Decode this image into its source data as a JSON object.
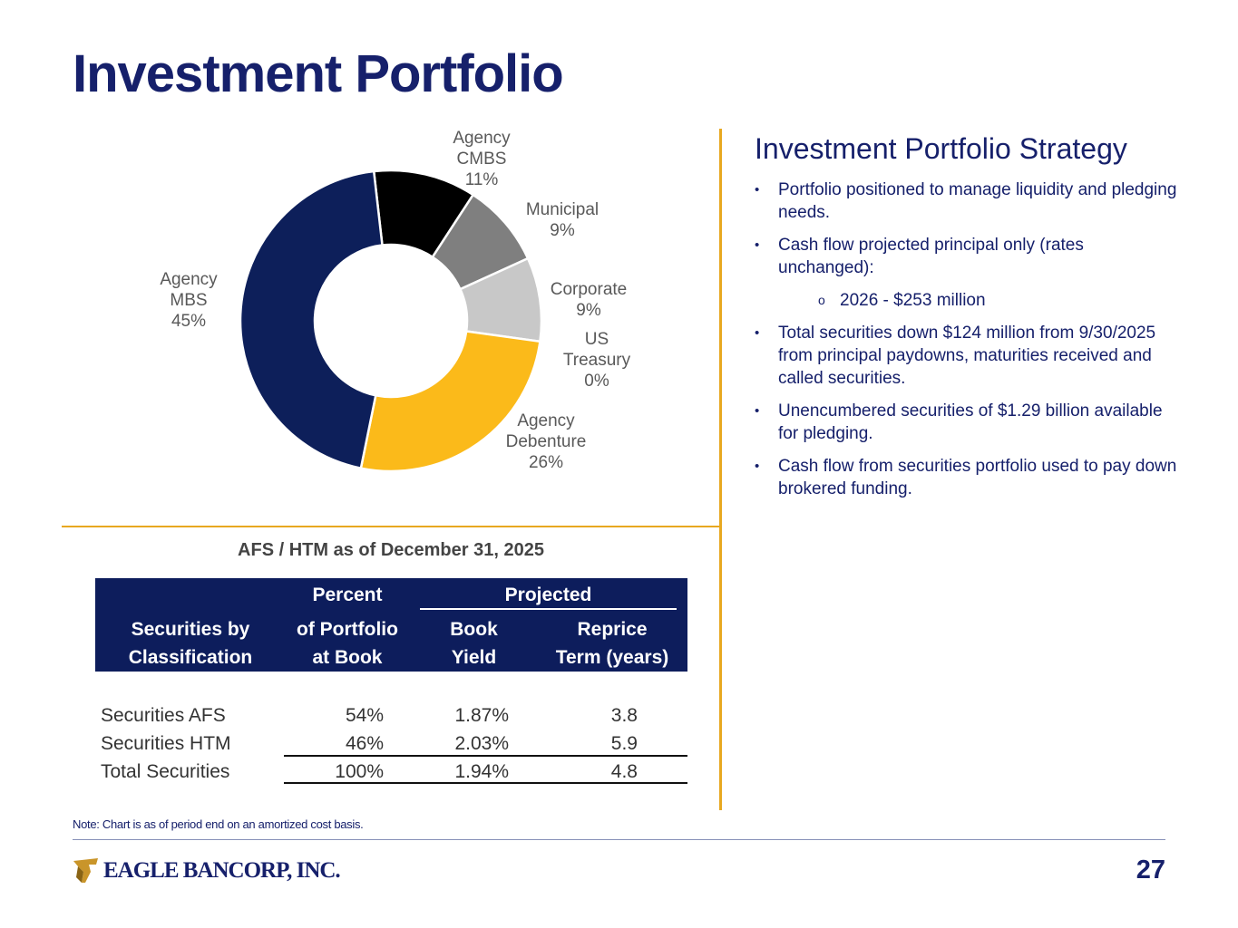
{
  "title": "Investment Portfolio",
  "chart_data": {
    "type": "pie",
    "subtype": "donut",
    "slices": [
      {
        "label_lines": [
          "Agency",
          "CMBS",
          "11%"
        ],
        "name": "Agency CMBS",
        "value": 11,
        "color": "#000000"
      },
      {
        "label_lines": [
          "Municipal",
          "9%"
        ],
        "name": "Municipal",
        "value": 9,
        "color": "#7f7f7f"
      },
      {
        "label_lines": [
          "Corporate",
          "9%"
        ],
        "name": "Corporate",
        "value": 9,
        "color": "#c8c8c8"
      },
      {
        "label_lines": [
          "US",
          "Treasury",
          "0%"
        ],
        "name": "US Treasury",
        "value": 0,
        "color": "#dddddd"
      },
      {
        "label_lines": [
          "Agency",
          "Debenture",
          "26%"
        ],
        "name": "Agency Debenture",
        "value": 26,
        "color": "#fbba1a"
      },
      {
        "label_lines": [
          "Agency",
          "MBS",
          "45%"
        ],
        "name": "Agency MBS",
        "value": 45,
        "color": "#0d1f5a"
      }
    ],
    "label_color": "#595959"
  },
  "table": {
    "title": "AFS / HTM as of December 31, 2025",
    "header": {
      "col1_line1": "Securities by",
      "col1_line2": "Classification",
      "col2_line1": "Percent",
      "col2_line2": "of Portfolio",
      "col2_line3": "at Book",
      "group": "Projected",
      "col3_line1": "Book",
      "col3_line2": "Yield",
      "col4_line1": "Reprice",
      "col4_line2": "Term (years)"
    },
    "rows": [
      {
        "name": "Securities AFS",
        "pct": "54%",
        "yield": "1.87%",
        "term": "3.8"
      },
      {
        "name": "Securities HTM",
        "pct": "46%",
        "yield": "2.03%",
        "term": "5.9"
      },
      {
        "name": "Total Securities",
        "pct": "100%",
        "yield": "1.94%",
        "term": "4.8"
      }
    ]
  },
  "strategy": {
    "title": "Investment Portfolio Strategy",
    "bullet_char": "•",
    "sub_bullet_char": "o",
    "bullets": [
      "Portfolio positioned to manage liquidity and pledging needs.",
      "Cash flow projected principal only (rates unchanged):",
      "2026 - $253 million",
      "Total securities down $124 million from 9/30/2025 from principal paydowns, maturities received and called securities.",
      "Unencumbered securities of $1.29 billion available for pledging.",
      "Cash flow from securities portfolio used to pay down brokered funding."
    ]
  },
  "note": "Note: Chart is as of period end on an amortized cost basis.",
  "footer": {
    "logo_text": "EAGLE BANCORP, INC.",
    "page_number": "27"
  },
  "colors": {
    "navy": "#16206b",
    "gold": "#e8a820"
  }
}
